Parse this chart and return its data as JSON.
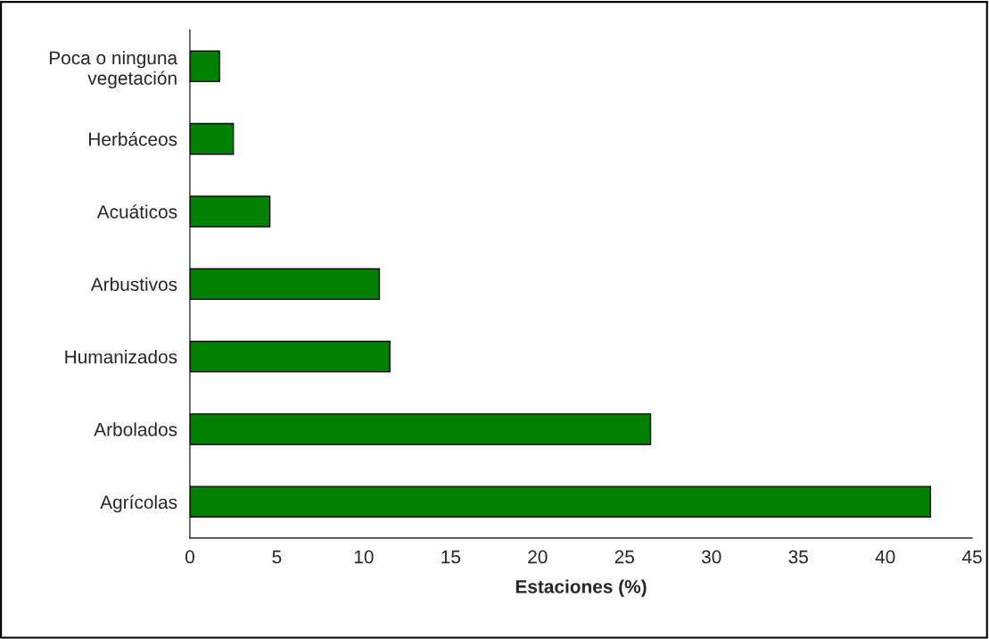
{
  "chart_data": {
    "type": "bar",
    "orientation": "horizontal",
    "xlabel": "Estaciones (%)",
    "categories": [
      "Poca o ninguna\nvegetación",
      "Herbáceos",
      "Acuáticos",
      "Arbustivos",
      "Humanizados",
      "Arbolados",
      "Agrícolas"
    ],
    "values": [
      1.7,
      2.5,
      4.6,
      10.9,
      11.5,
      26.5,
      42.6
    ],
    "color": "#008000",
    "xlim": [
      0,
      45
    ],
    "xticks": [
      0,
      5,
      10,
      15,
      20,
      25,
      30,
      35,
      40,
      45
    ],
    "grid": false,
    "legend": false
  }
}
